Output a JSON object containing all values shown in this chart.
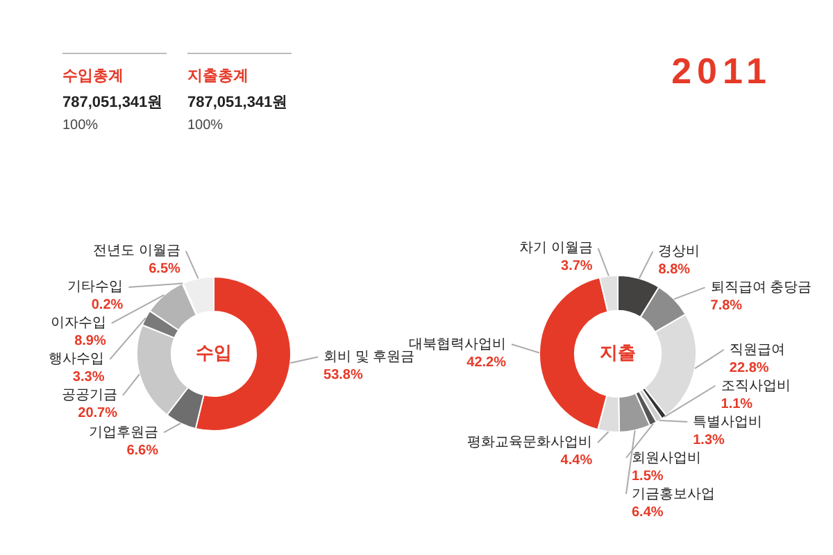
{
  "chart_data": [
    {
      "type": "donut",
      "title": "수입",
      "annotations": [
        "수입총계",
        "787,051,341원",
        "100%",
        "2011"
      ],
      "categories": [
        "회비 및 후원금",
        "기업후원금",
        "공공기금",
        "행사수입",
        "이자수입",
        "기타수입",
        "전년도 이월금"
      ],
      "values": [
        53.8,
        6.6,
        20.7,
        3.3,
        8.9,
        0.2,
        6.5
      ],
      "colors": [
        "#e63a28",
        "#6e6e6e",
        "#c8c8c8",
        "#7a7a7a",
        "#b4b4b4",
        "#333333",
        "#eeeeee"
      ],
      "value_labels": [
        "53.8%",
        "6.6%",
        "20.7%",
        "3.3%",
        "8.9%",
        "0.2%",
        "6.5%"
      ],
      "legend": false
    },
    {
      "type": "donut",
      "title": "지출",
      "annotations": [
        "지출총계",
        "787,051,341원",
        "100%"
      ],
      "categories": [
        "경상비",
        "퇴직급여 충당금",
        "직원급여",
        "조직사업비",
        "특별사업비",
        "회원사업비",
        "기금홍보사업",
        "평화교육문화사업비",
        "대북협력사업비",
        "차기 이월금"
      ],
      "values": [
        8.8,
        7.8,
        22.8,
        1.1,
        1.3,
        1.5,
        6.4,
        4.4,
        42.2,
        3.7
      ],
      "colors": [
        "#444141",
        "#8c8c8c",
        "#dcdcdc",
        "#333333",
        "#cfcfcf",
        "#555555",
        "#9a9a9a",
        "#dddddd",
        "#e63a28",
        "#e0e0e0"
      ],
      "value_labels": [
        "8.8%",
        "7.8%",
        "22.8%",
        "1.1%",
        "1.3%",
        "1.5%",
        "6.4%",
        "4.4%",
        "42.2%",
        "3.7%"
      ],
      "legend": false
    }
  ]
}
